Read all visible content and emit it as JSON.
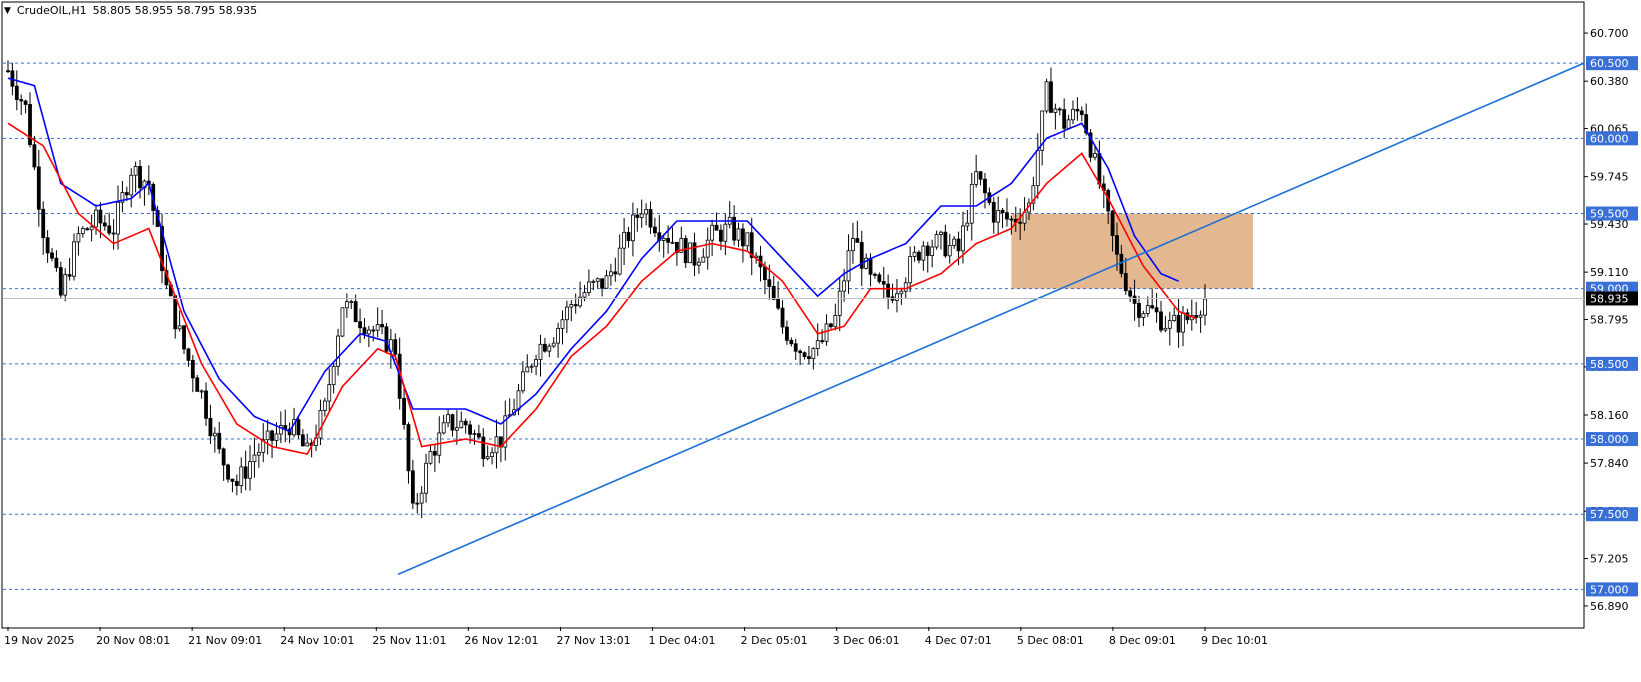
{
  "header": {
    "symbol": "CrudeOIL,H1",
    "ohlc": "58.805 58.955 58.795 58.935"
  },
  "colors": {
    "background": "#ffffff",
    "bull_candle": "#000000",
    "bear_candle": "#000000",
    "ma_fast": "#ff0000",
    "ma_slow": "#0000ff",
    "trendline": "#1a6fd6",
    "level_line": "#3a6fd8",
    "level_label_bg": "#3a6fd8",
    "zone_fill": "#e0b084",
    "current_price_bg": "#000000"
  },
  "chart_data": {
    "type": "candlestick",
    "title": "CrudeOIL,H1",
    "y_range": [
      56.75,
      60.9
    ],
    "y_ticks": [
      "60.700",
      "60.380",
      "60.065",
      "59.745",
      "59.430",
      "59.110",
      "58.795",
      "58.480",
      "58.160",
      "57.840",
      "57.520",
      "57.205",
      "56.890"
    ],
    "x_ticks": [
      "19 Nov 2025",
      "20 Nov 08:01",
      "21 Nov 09:01",
      "24 Nov 10:01",
      "25 Nov 11:01",
      "26 Nov 12:01",
      "27 Nov 13:01",
      "1 Dec 04:01",
      "2 Dec 05:01",
      "3 Dec 06:01",
      "4 Dec 07:01",
      "5 Dec 08:01",
      "8 Dec 09:01",
      "9 Dec 10:01"
    ],
    "levels": [
      "60.500",
      "60.000",
      "59.500",
      "59.000",
      "58.500",
      "58.000",
      "57.500",
      "57.000"
    ],
    "current_price": "58.935",
    "zone": {
      "x_start": "5 Dec 08:01",
      "x_end": "9 Dec 10:01",
      "y_low": 59.0,
      "y_high": 59.5
    },
    "trendline": {
      "x_start": "25 Nov 11:01",
      "y_start": 57.1,
      "x_end": "10 Dec",
      "y_end": 60.5
    },
    "close_path": [
      [
        0,
        60.45
      ],
      [
        4,
        60.2
      ],
      [
        8,
        59.4
      ],
      [
        12,
        58.95
      ],
      [
        16,
        59.35
      ],
      [
        20,
        59.45
      ],
      [
        24,
        59.4
      ],
      [
        28,
        59.8
      ],
      [
        32,
        59.7
      ],
      [
        36,
        59.0
      ],
      [
        40,
        58.6
      ],
      [
        44,
        58.3
      ],
      [
        48,
        57.9
      ],
      [
        52,
        57.7
      ],
      [
        56,
        57.9
      ],
      [
        60,
        58.0
      ],
      [
        64,
        58.1
      ],
      [
        68,
        57.9
      ],
      [
        72,
        58.2
      ],
      [
        76,
        58.9
      ],
      [
        80,
        58.8
      ],
      [
        84,
        58.7
      ],
      [
        88,
        58.6
      ],
      [
        92,
        57.5
      ],
      [
        96,
        57.9
      ],
      [
        100,
        58.1
      ],
      [
        104,
        58.1
      ],
      [
        108,
        57.95
      ],
      [
        112,
        58.0
      ],
      [
        116,
        58.3
      ],
      [
        120,
        58.6
      ],
      [
        124,
        58.7
      ],
      [
        128,
        58.9
      ],
      [
        132,
        59.0
      ],
      [
        136,
        59.05
      ],
      [
        140,
        59.3
      ],
      [
        144,
        59.55
      ],
      [
        148,
        59.4
      ],
      [
        152,
        59.3
      ],
      [
        156,
        59.2
      ],
      [
        160,
        59.35
      ],
      [
        164,
        59.4
      ],
      [
        168,
        59.3
      ],
      [
        172,
        59.05
      ],
      [
        176,
        58.75
      ],
      [
        180,
        58.6
      ],
      [
        184,
        58.6
      ],
      [
        188,
        58.8
      ],
      [
        192,
        59.35
      ],
      [
        196,
        59.05
      ],
      [
        200,
        58.95
      ],
      [
        204,
        59.1
      ],
      [
        208,
        59.3
      ],
      [
        212,
        59.3
      ],
      [
        216,
        59.25
      ],
      [
        220,
        59.75
      ],
      [
        224,
        59.5
      ],
      [
        228,
        59.45
      ],
      [
        232,
        59.55
      ],
      [
        236,
        60.3
      ],
      [
        240,
        60.1
      ],
      [
        244,
        60.2
      ],
      [
        248,
        59.7
      ],
      [
        252,
        59.2
      ],
      [
        256,
        58.9
      ],
      [
        260,
        58.85
      ],
      [
        264,
        58.75
      ],
      [
        268,
        58.8
      ],
      [
        272,
        58.935
      ]
    ],
    "ma_fast_path": [
      [
        0,
        60.1
      ],
      [
        8,
        59.95
      ],
      [
        16,
        59.5
      ],
      [
        24,
        59.3
      ],
      [
        32,
        59.4
      ],
      [
        36,
        59.1
      ],
      [
        44,
        58.5
      ],
      [
        52,
        58.1
      ],
      [
        60,
        57.95
      ],
      [
        68,
        57.9
      ],
      [
        76,
        58.35
      ],
      [
        84,
        58.6
      ],
      [
        88,
        58.55
      ],
      [
        94,
        57.95
      ],
      [
        104,
        58.0
      ],
      [
        112,
        57.95
      ],
      [
        120,
        58.2
      ],
      [
        128,
        58.55
      ],
      [
        136,
        58.75
      ],
      [
        144,
        59.05
      ],
      [
        152,
        59.25
      ],
      [
        160,
        59.3
      ],
      [
        168,
        59.25
      ],
      [
        176,
        59.05
      ],
      [
        184,
        58.7
      ],
      [
        190,
        58.75
      ],
      [
        196,
        59.0
      ],
      [
        204,
        59.0
      ],
      [
        212,
        59.1
      ],
      [
        220,
        59.3
      ],
      [
        228,
        59.4
      ],
      [
        236,
        59.7
      ],
      [
        244,
        59.9
      ],
      [
        250,
        59.6
      ],
      [
        258,
        59.15
      ],
      [
        266,
        58.85
      ],
      [
        270,
        58.8
      ]
    ],
    "ma_slow_path": [
      [
        0,
        60.4
      ],
      [
        6,
        60.35
      ],
      [
        12,
        59.7
      ],
      [
        20,
        59.55
      ],
      [
        28,
        59.6
      ],
      [
        32,
        59.7
      ],
      [
        40,
        58.85
      ],
      [
        48,
        58.4
      ],
      [
        56,
        58.15
      ],
      [
        64,
        58.05
      ],
      [
        72,
        58.45
      ],
      [
        80,
        58.7
      ],
      [
        86,
        58.65
      ],
      [
        92,
        58.2
      ],
      [
        104,
        58.2
      ],
      [
        112,
        58.1
      ],
      [
        120,
        58.3
      ],
      [
        128,
        58.6
      ],
      [
        136,
        58.85
      ],
      [
        144,
        59.2
      ],
      [
        152,
        59.45
      ],
      [
        160,
        59.45
      ],
      [
        168,
        59.45
      ],
      [
        176,
        59.2
      ],
      [
        184,
        58.95
      ],
      [
        190,
        59.1
      ],
      [
        196,
        59.2
      ],
      [
        204,
        59.3
      ],
      [
        212,
        59.55
      ],
      [
        220,
        59.55
      ],
      [
        228,
        59.7
      ],
      [
        236,
        60.0
      ],
      [
        244,
        60.1
      ],
      [
        250,
        59.8
      ],
      [
        256,
        59.35
      ],
      [
        262,
        59.1
      ],
      [
        266,
        59.05
      ]
    ]
  }
}
